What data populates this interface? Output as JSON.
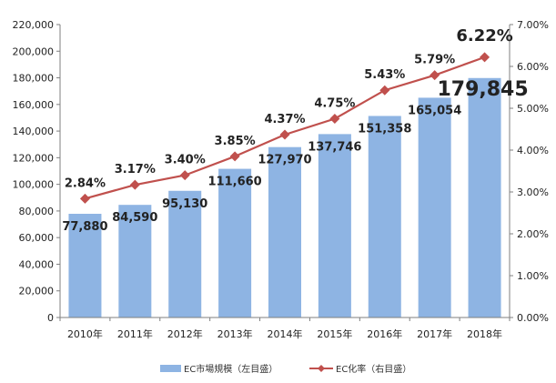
{
  "chart_data": {
    "type": "bar+line",
    "categories": [
      "2010年",
      "2011年",
      "2012年",
      "2013年",
      "2014年",
      "2015年",
      "2016年",
      "2017年",
      "2018年"
    ],
    "series": [
      {
        "name": "EC市場規模（左目盛）",
        "type": "bar",
        "axis": "left",
        "color": "#8EB4E3",
        "values": [
          77880,
          84590,
          95130,
          111660,
          127970,
          137746,
          151358,
          165054,
          179845
        ],
        "labels": [
          "77,880",
          "84,590",
          "95,130",
          "111,660",
          "127,970",
          "137,746",
          "151,358",
          "165,054",
          "179,845"
        ],
        "highlight_label": {
          "index": 8,
          "color": "#1F3864"
        }
      },
      {
        "name": "EC化率（右目盛）",
        "type": "line",
        "axis": "right",
        "color": "#C0504D",
        "values": [
          2.84,
          3.17,
          3.4,
          3.85,
          4.37,
          4.75,
          5.43,
          5.79,
          6.22
        ],
        "labels": [
          "2.84%",
          "3.17%",
          "3.40%",
          "3.85%",
          "4.37%",
          "4.75%",
          "5.43%",
          "5.79%",
          "6.22%"
        ],
        "highlight_label": {
          "index": 8,
          "color": "#C00000"
        }
      }
    ],
    "y_left": {
      "ylim": [
        0,
        220000
      ],
      "ticks": [
        "0",
        "20,000",
        "40,000",
        "60,000",
        "80,000",
        "100,000",
        "120,000",
        "140,000",
        "160,000",
        "180,000",
        "200,000",
        "220,000"
      ]
    },
    "y_right": {
      "ylim": [
        0,
        7
      ],
      "ticks": [
        "0.00%",
        "1.00%",
        "2.00%",
        "3.00%",
        "4.00%",
        "5.00%",
        "6.00%",
        "7.00%"
      ]
    },
    "grid": false,
    "legend_position": "bottom"
  }
}
